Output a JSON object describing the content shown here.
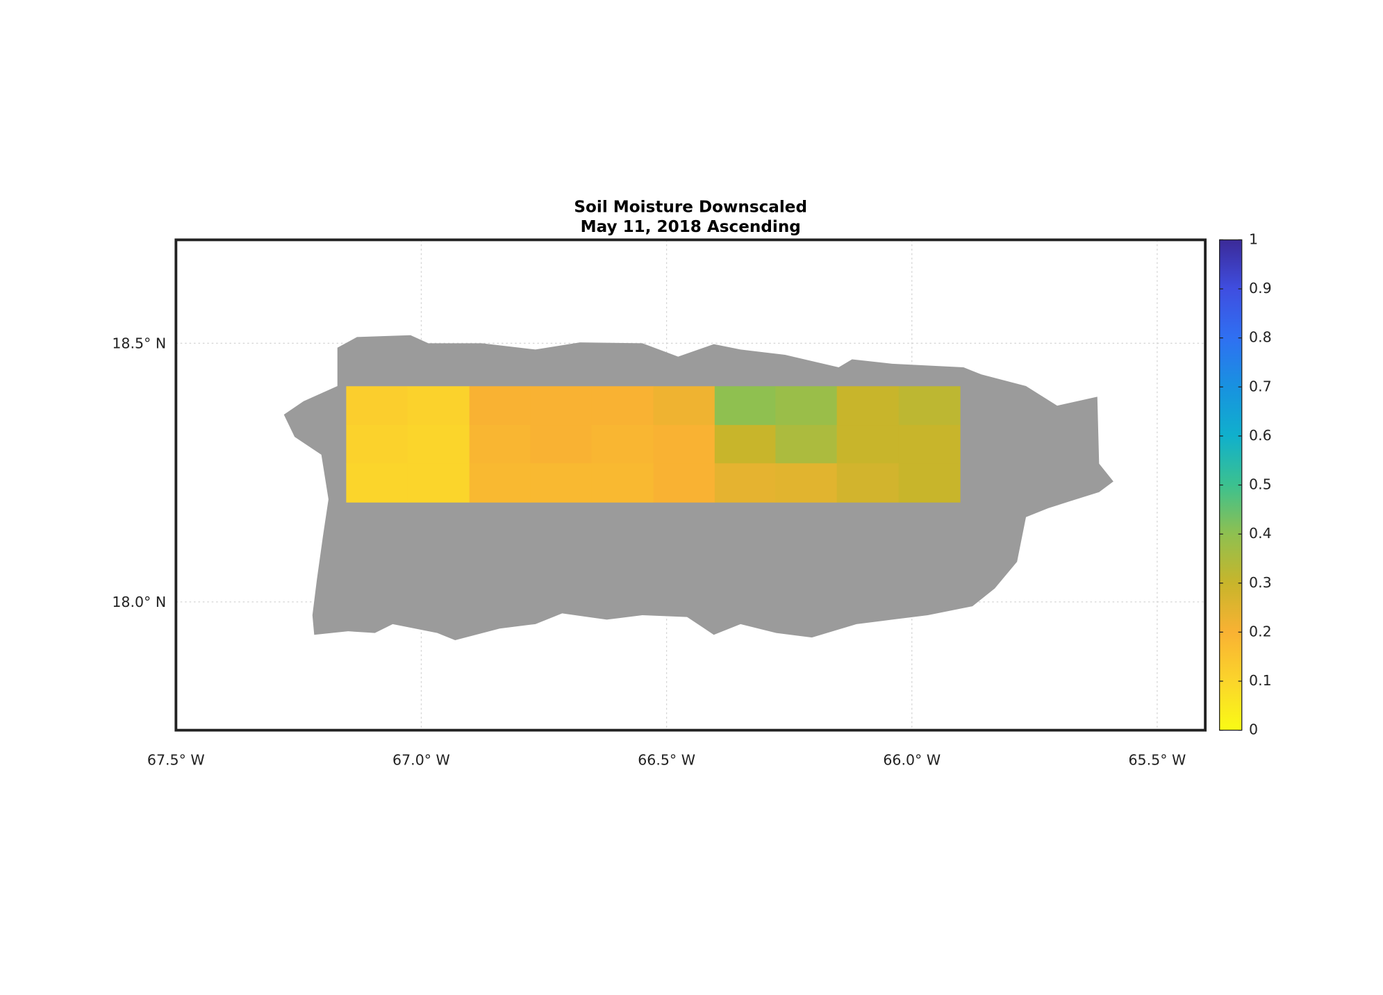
{
  "chart_data": {
    "type": "map",
    "title": "Soil Moisture Downscaled",
    "subtitle": "May 11, 2018 Ascending",
    "xlim": [
      -67.5,
      -65.402
    ],
    "ylim": [
      17.752,
      18.7
    ],
    "xticks": [
      {
        "value": -67.5,
        "label": "67.5° W"
      },
      {
        "value": -67.0,
        "label": "67.0° W"
      },
      {
        "value": -66.5,
        "label": "66.5° W"
      },
      {
        "value": -66.0,
        "label": "66.0° W"
      },
      {
        "value": -65.5,
        "label": "65.5° W"
      }
    ],
    "yticks": [
      {
        "value": 18.0,
        "label": "18.0° N"
      },
      {
        "value": 18.5,
        "label": "18.5° N"
      }
    ],
    "grid": true,
    "land_color": "#9b9b9b",
    "colorbar": {
      "clim": [
        0,
        1
      ],
      "ticks": [
        0,
        0.1,
        0.2,
        0.3,
        0.4,
        0.5,
        0.6,
        0.7,
        0.8,
        0.9,
        1
      ]
    },
    "colormap": [
      "#f9fb15",
      "#fbd52b",
      "#f9b233",
      "#c8b52b",
      "#8fc050",
      "#3cc18f",
      "#10b0cc",
      "#1892e0",
      "#2f70f2",
      "#3f4ee0",
      "#3b2a98"
    ],
    "grid_cells": {
      "lon_edges": [
        -67.153,
        -67.028,
        -66.902,
        -66.778,
        -66.653,
        -66.527,
        -66.402,
        -66.278,
        -66.153,
        -66.027,
        -65.902
      ],
      "lat_edges": [
        18.417,
        18.342,
        18.268,
        18.193
      ],
      "values": [
        [
          0.12,
          0.11,
          0.2,
          0.2,
          0.2,
          0.22,
          0.4,
          0.38,
          0.3,
          0.32
        ],
        [
          0.11,
          0.1,
          0.19,
          0.2,
          0.19,
          0.2,
          0.3,
          0.35,
          0.3,
          0.3
        ],
        [
          0.1,
          0.1,
          0.18,
          0.18,
          0.18,
          0.2,
          0.24,
          0.25,
          0.28,
          0.3
        ]
      ]
    }
  }
}
